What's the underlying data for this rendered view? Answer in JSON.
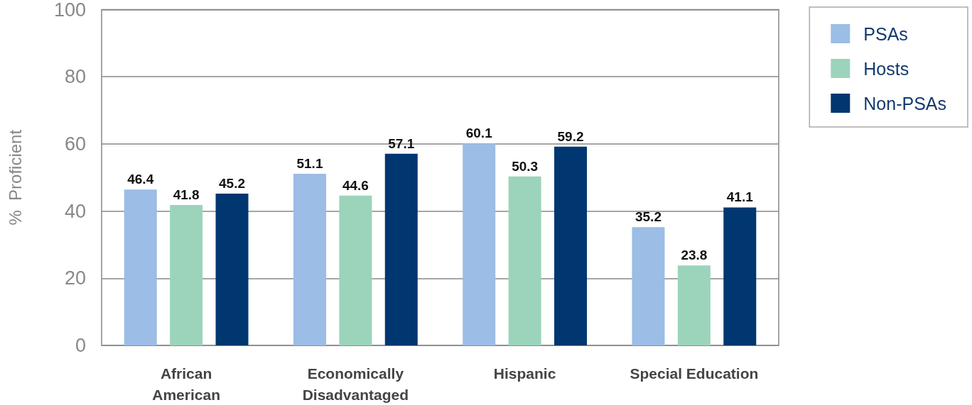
{
  "chart_data": {
    "type": "bar",
    "ylabel": "%  Proficient",
    "categories": [
      "African\nAmerican",
      "Economically\nDisadvantaged",
      "Hispanic",
      "Special Education"
    ],
    "series": [
      {
        "name": "PSAs",
        "color": "#9bbde6",
        "values": [
          46.4,
          51.1,
          60.1,
          35.2
        ]
      },
      {
        "name": "Hosts",
        "color": "#9bd4bb",
        "values": [
          41.8,
          44.6,
          50.3,
          23.8
        ]
      },
      {
        "name": "Non-PSAs",
        "color": "#003770",
        "values": [
          45.2,
          57.1,
          59.2,
          41.1
        ]
      }
    ],
    "ylim": [
      0,
      100
    ],
    "yticks": [
      0,
      20,
      40,
      60,
      80,
      100
    ],
    "grid": "y",
    "legend": "top right",
    "data_labels": true
  }
}
